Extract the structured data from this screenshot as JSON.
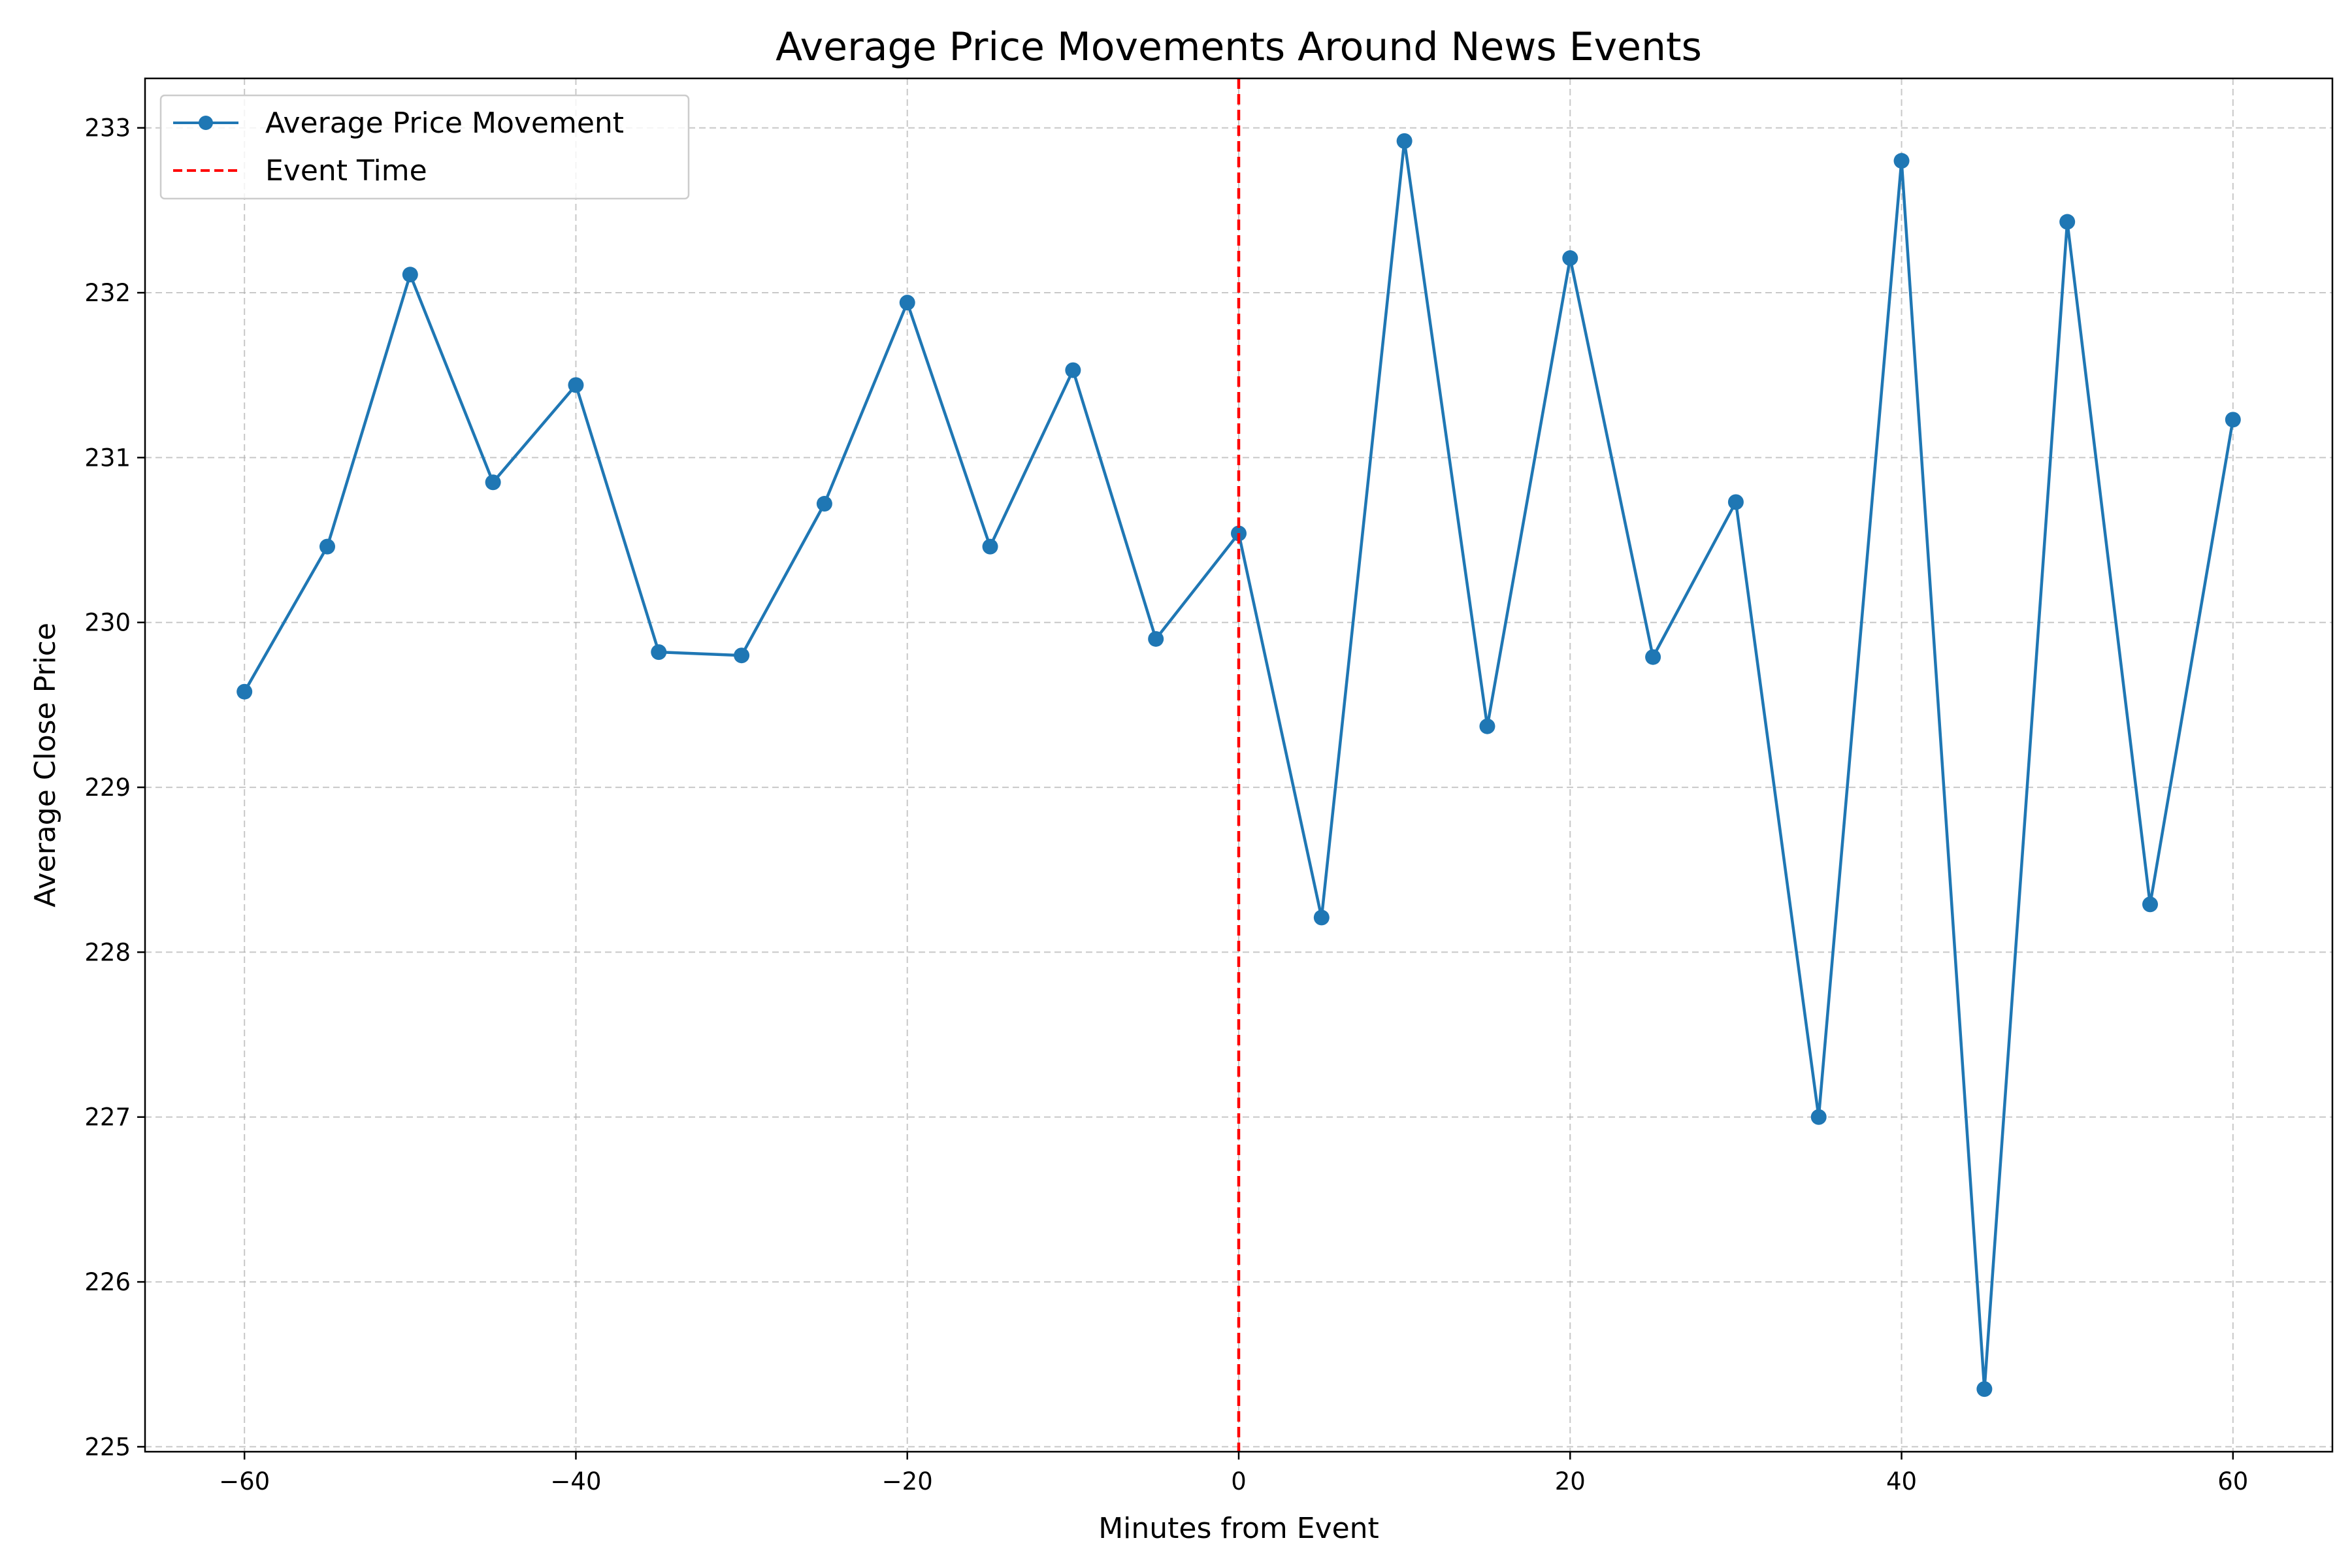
{
  "chart_data": {
    "type": "line",
    "title": "Average Price Movements Around News Events",
    "xlabel": "Minutes from Event",
    "ylabel": "Average Close Price",
    "xlim": [
      -66,
      66
    ],
    "ylim": [
      224.97,
      233.3
    ],
    "xticks": [
      -60,
      -40,
      -20,
      0,
      20,
      40,
      60
    ],
    "yticks": [
      225,
      226,
      227,
      228,
      229,
      230,
      231,
      232,
      233
    ],
    "grid": true,
    "legend_position": "top-left",
    "series": [
      {
        "name": "Average Price Movement",
        "color": "#1f77b4",
        "marker": "circle",
        "x": [
          -60,
          -55,
          -50,
          -45,
          -40,
          -35,
          -30,
          -25,
          -20,
          -15,
          -10,
          -5,
          0,
          5,
          10,
          15,
          20,
          25,
          30,
          35,
          40,
          45,
          50,
          55,
          60
        ],
        "y": [
          229.58,
          230.46,
          232.11,
          230.85,
          231.44,
          229.82,
          229.8,
          230.72,
          231.94,
          230.46,
          231.53,
          229.9,
          230.54,
          228.21,
          232.92,
          229.37,
          232.21,
          229.79,
          230.73,
          227.0,
          232.8,
          225.35,
          232.43,
          228.29,
          231.23
        ]
      }
    ],
    "event_line": {
      "name": "Event Time",
      "x": 0,
      "color": "#ff0000",
      "style": "dashed"
    }
  }
}
